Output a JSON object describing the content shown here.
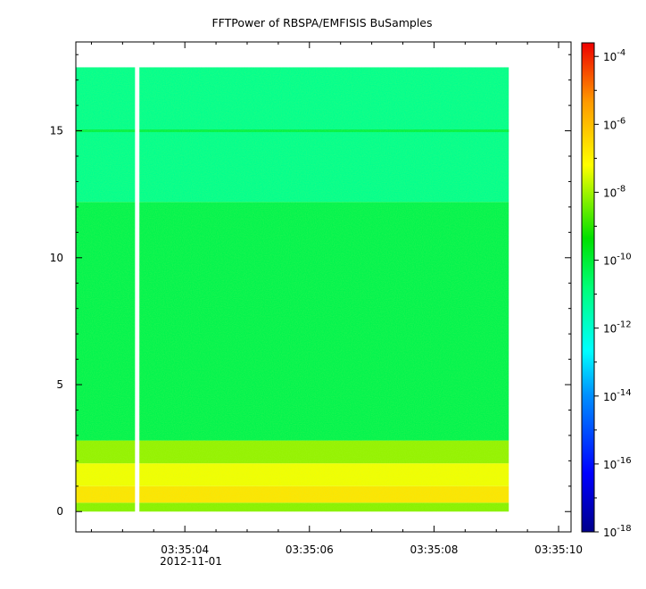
{
  "chart_data": {
    "type": "heatmap",
    "title": "FFTPower of RBSPA/EMFISIS  BuSamples",
    "xlabel": "",
    "ylabel": "",
    "x": {
      "ticks": [
        {
          "label": "03:35:04",
          "seconds": 4
        },
        {
          "label": "03:35:06",
          "seconds": 6
        },
        {
          "label": "03:35:08",
          "seconds": 8
        },
        {
          "label": "03:35:10",
          "seconds": 10
        }
      ],
      "date_label": "2012-11-01",
      "range_seconds": [
        2.25,
        10.2
      ],
      "minor_tick_seconds": [
        2.5,
        3.0,
        3.5,
        4.5,
        5.0,
        5.5,
        6.5,
        7.0,
        7.5,
        8.5,
        9.0,
        9.5
      ],
      "data_start_seconds": 2.25,
      "data_end_seconds": 9.2,
      "gap_seconds": [
        3.2,
        3.27
      ]
    },
    "y": {
      "range": [
        -0.8,
        18.5
      ],
      "ticks": [
        0,
        5,
        10,
        15
      ],
      "data_range": [
        0,
        17.5
      ]
    },
    "colorbar": {
      "scale": "log",
      "range_exponent": [
        -18,
        -3.6
      ],
      "tick_exponents": [
        -18,
        -16,
        -14,
        -12,
        -10,
        -8,
        -6,
        -4
      ],
      "tick_labels": [
        "10-18",
        "10-16",
        "10-14",
        "10-12",
        "10-10",
        "10-8",
        "10-6",
        "10-4"
      ]
    },
    "bands": [
      {
        "y": [
          0,
          0.35
        ],
        "log10_power": -8.2
      },
      {
        "y": [
          0.35,
          1.0
        ],
        "log10_power": -6.7
      },
      {
        "y": [
          1.0,
          1.9
        ],
        "log10_power": -7.3
      },
      {
        "y": [
          1.9,
          2.8
        ],
        "log10_power": -8.1
      },
      {
        "y": [
          2.8,
          12.2
        ],
        "log10_power": -10.3
      },
      {
        "y": [
          12.2,
          17.5
        ],
        "log10_power": -11.1
      }
    ],
    "lines": [
      {
        "y": 15.0,
        "log10_power": -10.2
      }
    ],
    "grid": false,
    "legend": "colorbar-right"
  }
}
